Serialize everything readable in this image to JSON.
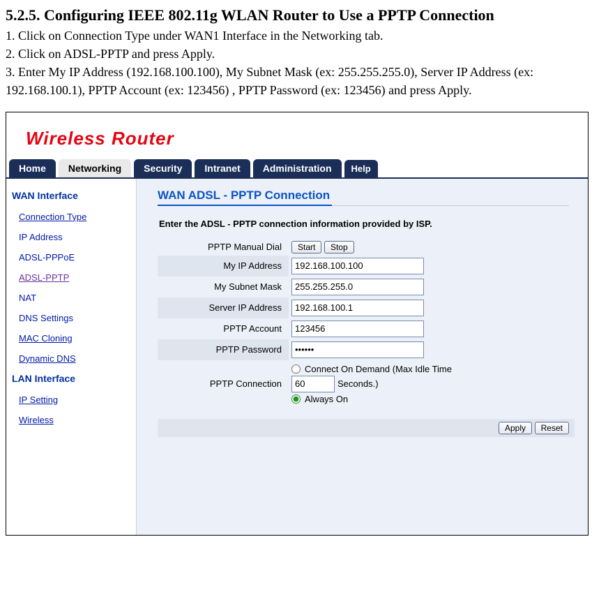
{
  "doc": {
    "heading": "5.2.5. Configuring IEEE 802.11g WLAN Router to Use a PPTP Connection",
    "step1": "1. Click on Connection Type under WAN1 Interface in the Networking tab.",
    "step2": "2. Click on ADSL-PPTP and press Apply.",
    "step3": "3. Enter My IP Address (192.168.100.100), My Subnet Mask (ex: 255.255.255.0), Server IP Address (ex: 192.168.100.1), PPTP Account (ex: 123456) , PPTP Password (ex: 123456) and press Apply."
  },
  "logo": "Wireless Router",
  "tabs": {
    "home": "Home",
    "networking": "Networking",
    "security": "Security",
    "intranet": "Intranet",
    "admin": "Administration",
    "help": "Help"
  },
  "sidebar": {
    "wan_section": "WAN Interface",
    "connection_type": "Connection Type",
    "ip_address": "IP Address",
    "adsl_pppoe": "ADSL-PPPoE",
    "adsl_pptp": "ADSL-PPTP",
    "nat": "NAT",
    "dns": "DNS Settings",
    "mac_cloning": "MAC Cloning",
    "ddns": "Dynamic DNS",
    "lan_section": "LAN Interface",
    "ip_setting": "IP Setting",
    "wireless": "Wireless"
  },
  "panel": {
    "title": "WAN ADSL - PPTP Connection",
    "subtitle": "Enter the ADSL - PPTP connection information provided by ISP.",
    "labels": {
      "manual_dial": "PPTP Manual Dial",
      "my_ip": "My IP Address",
      "subnet": "My Subnet Mask",
      "server_ip": "Server IP Address",
      "account": "PPTP Account",
      "password": "PPTP Password",
      "connection": "PPTP Connection"
    },
    "buttons": {
      "start": "Start",
      "stop": "Stop",
      "apply": "Apply",
      "reset": "Reset"
    },
    "values": {
      "my_ip": "192.168.100.100",
      "subnet": "255.255.255.0",
      "server_ip": "192.168.100.1",
      "account": "123456",
      "password": "••••••",
      "idle_time": "60"
    },
    "conn": {
      "on_demand_pre": "Connect On Demand (Max Idle Time",
      "on_demand_post": "Seconds.)",
      "always_on": "Always On"
    }
  }
}
